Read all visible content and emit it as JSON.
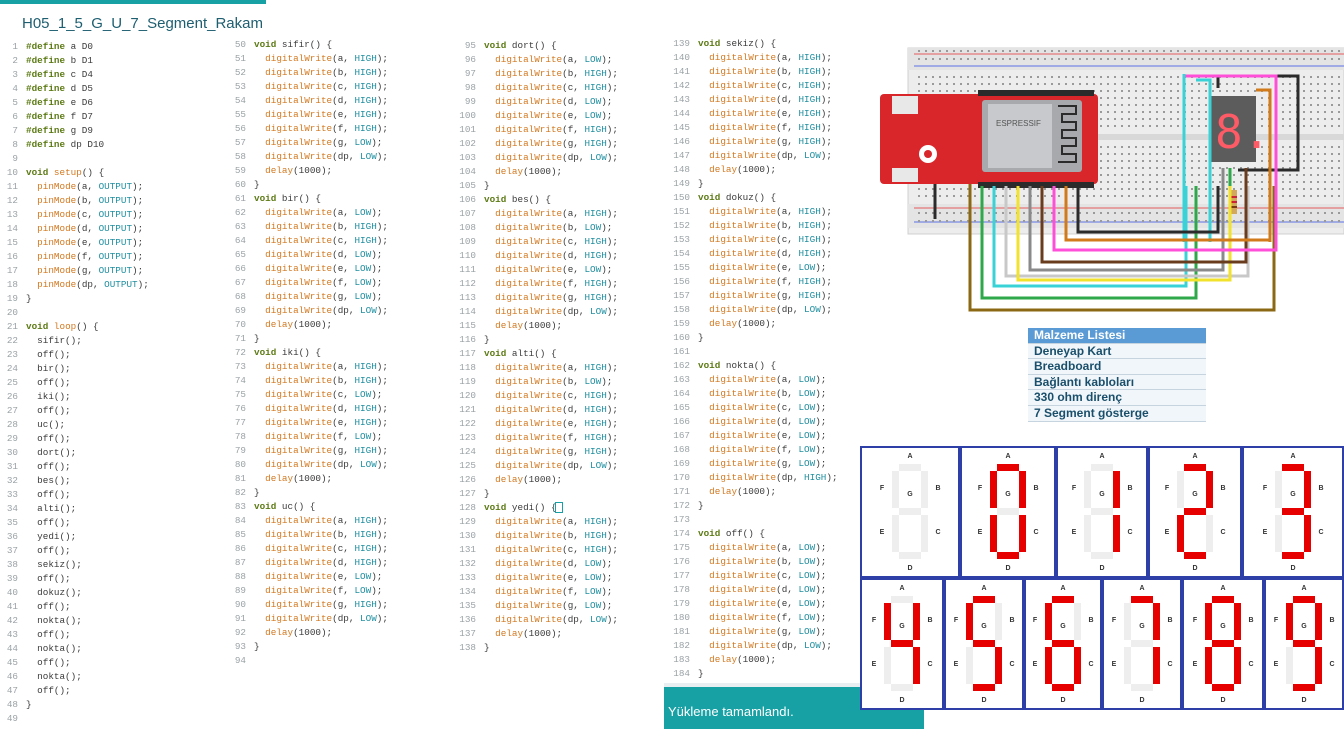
{
  "tab": {
    "title": "H05_1_5_G_U_7_Segment_Rakam"
  },
  "status": {
    "message": "Yükleme tamamlandı."
  },
  "materials": {
    "header": "Malzeme Listesi",
    "items": [
      "Deneyap Kart",
      "Breadboard",
      "Bağlantı kabloları",
      "330 ohm direnç",
      "7 Segment gösterge"
    ]
  },
  "board": {
    "module_label": "ESPRESSIF",
    "display_glyph": "8."
  },
  "segments_panel": {
    "labels": {
      "a": "A",
      "b": "B",
      "c": "C",
      "d": "D",
      "e": "E",
      "f": "F",
      "g": "G"
    },
    "digits": [
      {
        "on": [
          0,
          0,
          0,
          0,
          0,
          0,
          0
        ]
      },
      {
        "on": [
          1,
          1,
          1,
          1,
          1,
          1,
          0
        ]
      },
      {
        "on": [
          0,
          1,
          1,
          0,
          0,
          0,
          0
        ]
      },
      {
        "on": [
          1,
          1,
          0,
          1,
          1,
          0,
          1
        ]
      },
      {
        "on": [
          1,
          1,
          1,
          1,
          0,
          0,
          1
        ]
      },
      {
        "on": [
          0,
          1,
          1,
          0,
          0,
          1,
          1
        ]
      },
      {
        "on": [
          1,
          0,
          1,
          1,
          0,
          1,
          1
        ]
      },
      {
        "on": [
          1,
          0,
          1,
          1,
          1,
          1,
          1
        ]
      },
      {
        "on": [
          1,
          1,
          1,
          0,
          0,
          0,
          0
        ]
      },
      {
        "on": [
          1,
          1,
          1,
          1,
          1,
          1,
          1
        ]
      },
      {
        "on": [
          1,
          1,
          1,
          1,
          0,
          1,
          1
        ]
      }
    ],
    "colors": {
      "on": "#e60000",
      "off": "#eeeeee",
      "border": "#2f3fa8"
    }
  },
  "code": {
    "col1": [
      [
        "1",
        "#define a D0"
      ],
      [
        "2",
        "#define b D1"
      ],
      [
        "3",
        "#define c D4"
      ],
      [
        "4",
        "#define d D5"
      ],
      [
        "5",
        "#define e D6"
      ],
      [
        "6",
        "#define f D7"
      ],
      [
        "7",
        "#define g D9"
      ],
      [
        "8",
        "#define dp D10"
      ],
      [
        "9",
        ""
      ],
      [
        "10",
        "void setup() {"
      ],
      [
        "11",
        "  pinMode(a, OUTPUT);"
      ],
      [
        "12",
        "  pinMode(b, OUTPUT);"
      ],
      [
        "13",
        "  pinMode(c, OUTPUT);"
      ],
      [
        "14",
        "  pinMode(d, OUTPUT);"
      ],
      [
        "15",
        "  pinMode(e, OUTPUT);"
      ],
      [
        "16",
        "  pinMode(f, OUTPUT);"
      ],
      [
        "17",
        "  pinMode(g, OUTPUT);"
      ],
      [
        "18",
        "  pinMode(dp, OUTPUT);"
      ],
      [
        "19",
        "}"
      ],
      [
        "20",
        ""
      ],
      [
        "21",
        "void loop() {"
      ],
      [
        "22",
        "  sifir();"
      ],
      [
        "23",
        "  off();"
      ],
      [
        "24",
        "  bir();"
      ],
      [
        "25",
        "  off();"
      ],
      [
        "26",
        "  iki();"
      ],
      [
        "27",
        "  off();"
      ],
      [
        "28",
        "  uc();"
      ],
      [
        "29",
        "  off();"
      ],
      [
        "30",
        "  dort();"
      ],
      [
        "31",
        "  off();"
      ],
      [
        "32",
        "  bes();"
      ],
      [
        "33",
        "  off();"
      ],
      [
        "34",
        "  alti();"
      ],
      [
        "35",
        "  off();"
      ],
      [
        "36",
        "  yedi();"
      ],
      [
        "37",
        "  off();"
      ],
      [
        "38",
        "  sekiz();"
      ],
      [
        "39",
        "  off();"
      ],
      [
        "40",
        "  dokuz();"
      ],
      [
        "41",
        "  off();"
      ],
      [
        "42",
        "  nokta();"
      ],
      [
        "43",
        "  off();"
      ],
      [
        "44",
        "  nokta();"
      ],
      [
        "45",
        "  off();"
      ],
      [
        "46",
        "  nokta();"
      ],
      [
        "47",
        "  off();"
      ],
      [
        "48",
        "}"
      ],
      [
        "49",
        ""
      ]
    ],
    "col2": [
      [
        "50",
        "void sifir() {"
      ],
      [
        "51",
        "  digitalWrite(a, HIGH);"
      ],
      [
        "52",
        "  digitalWrite(b, HIGH);"
      ],
      [
        "53",
        "  digitalWrite(c, HIGH);"
      ],
      [
        "54",
        "  digitalWrite(d, HIGH);"
      ],
      [
        "55",
        "  digitalWrite(e, HIGH);"
      ],
      [
        "56",
        "  digitalWrite(f, HIGH);"
      ],
      [
        "57",
        "  digitalWrite(g, LOW);"
      ],
      [
        "58",
        "  digitalWrite(dp, LOW);"
      ],
      [
        "59",
        "  delay(1000);"
      ],
      [
        "60",
        "}"
      ],
      [
        "61",
        "void bir() {"
      ],
      [
        "62",
        "  digitalWrite(a, LOW);"
      ],
      [
        "63",
        "  digitalWrite(b, HIGH);"
      ],
      [
        "64",
        "  digitalWrite(c, HIGH);"
      ],
      [
        "65",
        "  digitalWrite(d, LOW);"
      ],
      [
        "66",
        "  digitalWrite(e, LOW);"
      ],
      [
        "67",
        "  digitalWrite(f, LOW);"
      ],
      [
        "68",
        "  digitalWrite(g, LOW);"
      ],
      [
        "69",
        "  digitalWrite(dp, LOW);"
      ],
      [
        "70",
        "  delay(1000);"
      ],
      [
        "71",
        "}"
      ],
      [
        "72",
        "void iki() {"
      ],
      [
        "73",
        "  digitalWrite(a, HIGH);"
      ],
      [
        "74",
        "  digitalWrite(b, HIGH);"
      ],
      [
        "75",
        "  digitalWrite(c, LOW);"
      ],
      [
        "76",
        "  digitalWrite(d, HIGH);"
      ],
      [
        "77",
        "  digitalWrite(e, HIGH);"
      ],
      [
        "78",
        "  digitalWrite(f, LOW);"
      ],
      [
        "79",
        "  digitalWrite(g, HIGH);"
      ],
      [
        "80",
        "  digitalWrite(dp, LOW);"
      ],
      [
        "81",
        "  delay(1000);"
      ],
      [
        "82",
        "}"
      ],
      [
        "83",
        "void uc() {"
      ],
      [
        "84",
        "  digitalWrite(a, HIGH);"
      ],
      [
        "85",
        "  digitalWrite(b, HIGH);"
      ],
      [
        "86",
        "  digitalWrite(c, HIGH);"
      ],
      [
        "87",
        "  digitalWrite(d, HIGH);"
      ],
      [
        "88",
        "  digitalWrite(e, LOW);"
      ],
      [
        "89",
        "  digitalWrite(f, LOW);"
      ],
      [
        "90",
        "  digitalWrite(g, HIGH);"
      ],
      [
        "91",
        "  digitalWrite(dp, LOW);"
      ],
      [
        "92",
        "  delay(1000);"
      ],
      [
        "93",
        "}"
      ],
      [
        "94",
        ""
      ]
    ],
    "col3": [
      [
        "95",
        "void dort() {"
      ],
      [
        "96",
        "  digitalWrite(a, LOW);"
      ],
      [
        "97",
        "  digitalWrite(b, HIGH);"
      ],
      [
        "98",
        "  digitalWrite(c, HIGH);"
      ],
      [
        "99",
        "  digitalWrite(d, LOW);"
      ],
      [
        "100",
        "  digitalWrite(e, LOW);"
      ],
      [
        "101",
        "  digitalWrite(f, HIGH);"
      ],
      [
        "102",
        "  digitalWrite(g, HIGH);"
      ],
      [
        "103",
        "  digitalWrite(dp, LOW);"
      ],
      [
        "104",
        "  delay(1000);"
      ],
      [
        "105",
        "}"
      ],
      [
        "106",
        "void bes() {"
      ],
      [
        "107",
        "  digitalWrite(a, HIGH);"
      ],
      [
        "108",
        "  digitalWrite(b, LOW);"
      ],
      [
        "109",
        "  digitalWrite(c, HIGH);"
      ],
      [
        "110",
        "  digitalWrite(d, HIGH);"
      ],
      [
        "111",
        "  digitalWrite(e, LOW);"
      ],
      [
        "112",
        "  digitalWrite(f, HIGH);"
      ],
      [
        "113",
        "  digitalWrite(g, HIGH);"
      ],
      [
        "114",
        "  digitalWrite(dp, LOW);"
      ],
      [
        "115",
        "  delay(1000);"
      ],
      [
        "116",
        "}"
      ],
      [
        "117",
        "void alti() {"
      ],
      [
        "118",
        "  digitalWrite(a, HIGH);"
      ],
      [
        "119",
        "  digitalWrite(b, LOW);"
      ],
      [
        "120",
        "  digitalWrite(c, HIGH);"
      ],
      [
        "121",
        "  digitalWrite(d, HIGH);"
      ],
      [
        "122",
        "  digitalWrite(e, HIGH);"
      ],
      [
        "123",
        "  digitalWrite(f, HIGH);"
      ],
      [
        "124",
        "  digitalWrite(g, HIGH);"
      ],
      [
        "125",
        "  digitalWrite(dp, LOW);"
      ],
      [
        "126",
        "  delay(1000);"
      ],
      [
        "127",
        "}"
      ],
      [
        "128",
        "void yedi() {"
      ],
      [
        "129",
        "  digitalWrite(a, HIGH);"
      ],
      [
        "130",
        "  digitalWrite(b, HIGH);"
      ],
      [
        "131",
        "  digitalWrite(c, HIGH);"
      ],
      [
        "132",
        "  digitalWrite(d, LOW);"
      ],
      [
        "133",
        "  digitalWrite(e, LOW);"
      ],
      [
        "134",
        "  digitalWrite(f, LOW);"
      ],
      [
        "135",
        "  digitalWrite(g, LOW);"
      ],
      [
        "136",
        "  digitalWrite(dp, LOW);"
      ],
      [
        "137",
        "  delay(1000);"
      ],
      [
        "138",
        "}"
      ]
    ],
    "col4": [
      [
        "139",
        "void sekiz() {"
      ],
      [
        "140",
        "  digitalWrite(a, HIGH);"
      ],
      [
        "141",
        "  digitalWrite(b, HIGH);"
      ],
      [
        "142",
        "  digitalWrite(c, HIGH);"
      ],
      [
        "143",
        "  digitalWrite(d, HIGH);"
      ],
      [
        "144",
        "  digitalWrite(e, HIGH);"
      ],
      [
        "145",
        "  digitalWrite(f, HIGH);"
      ],
      [
        "146",
        "  digitalWrite(g, HIGH);"
      ],
      [
        "147",
        "  digitalWrite(dp, LOW);"
      ],
      [
        "148",
        "  delay(1000);"
      ],
      [
        "149",
        "}"
      ],
      [
        "150",
        "void dokuz() {"
      ],
      [
        "151",
        "  digitalWrite(a, HIGH);"
      ],
      [
        "152",
        "  digitalWrite(b, HIGH);"
      ],
      [
        "153",
        "  digitalWrite(c, HIGH);"
      ],
      [
        "154",
        "  digitalWrite(d, HIGH);"
      ],
      [
        "155",
        "  digitalWrite(e, LOW);"
      ],
      [
        "156",
        "  digitalWrite(f, HIGH);"
      ],
      [
        "157",
        "  digitalWrite(g, HIGH);"
      ],
      [
        "158",
        "  digitalWrite(dp, LOW);"
      ],
      [
        "159",
        "  delay(1000);"
      ],
      [
        "160",
        "}"
      ],
      [
        "161",
        ""
      ],
      [
        "162",
        "void nokta() {"
      ],
      [
        "163",
        "  digitalWrite(a, LOW);"
      ],
      [
        "164",
        "  digitalWrite(b, LOW);"
      ],
      [
        "165",
        "  digitalWrite(c, LOW);"
      ],
      [
        "166",
        "  digitalWrite(d, LOW);"
      ],
      [
        "167",
        "  digitalWrite(e, LOW);"
      ],
      [
        "168",
        "  digitalWrite(f, LOW);"
      ],
      [
        "169",
        "  digitalWrite(g, LOW);"
      ],
      [
        "170",
        "  digitalWrite(dp, HIGH);"
      ],
      [
        "171",
        "  delay(1000);"
      ],
      [
        "172",
        "}"
      ],
      [
        "173",
        ""
      ],
      [
        "174",
        "void off() {"
      ],
      [
        "175",
        "  digitalWrite(a, LOW);"
      ],
      [
        "176",
        "  digitalWrite(b, LOW);"
      ],
      [
        "177",
        "  digitalWrite(c, LOW);"
      ],
      [
        "178",
        "  digitalWrite(d, LOW);"
      ],
      [
        "179",
        "  digitalWrite(e, LOW);"
      ],
      [
        "180",
        "  digitalWrite(f, LOW);"
      ],
      [
        "181",
        "  digitalWrite(g, LOW);"
      ],
      [
        "182",
        "  digitalWrite(dp, LOW);"
      ],
      [
        "183",
        "  delay(1000);"
      ],
      [
        "184",
        "}"
      ]
    ]
  }
}
